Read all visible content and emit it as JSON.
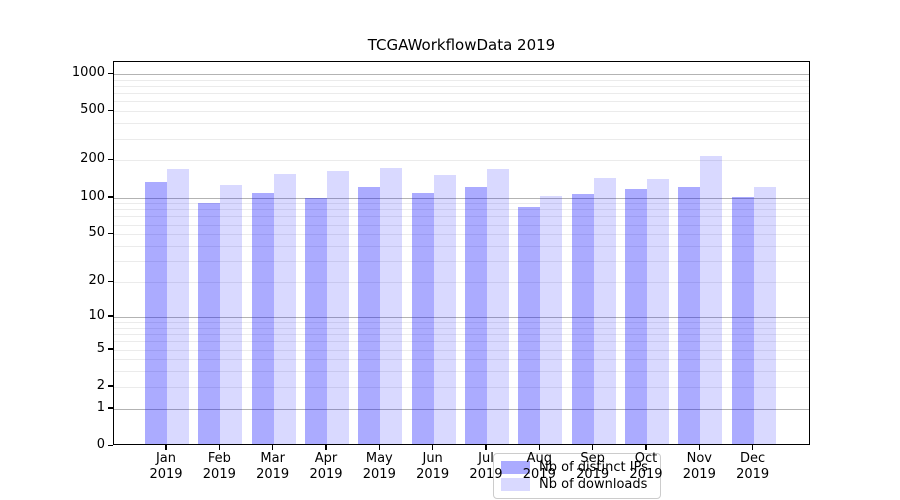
{
  "title": "TCGAWorkflowData 2019",
  "legend": {
    "items": [
      {
        "label": "Nb of distinct IPs",
        "swatch": "distinct-ips-swatch"
      },
      {
        "label": "Nb of downloads",
        "swatch": "downloads-swatch"
      }
    ]
  },
  "chart_data": {
    "type": "bar",
    "title": "TCGAWorkflowData 2019",
    "x": {
      "months": [
        "Jan",
        "Feb",
        "Mar",
        "Apr",
        "May",
        "Jun",
        "Jul",
        "Aug",
        "Sep",
        "Oct",
        "Nov",
        "Dec"
      ],
      "year": "2019"
    },
    "series": [
      {
        "name": "Nb of distinct IPs",
        "color": "rgba(0,0,255,0.33)",
        "values": [
          130,
          87,
          104,
          95,
          118,
          104,
          118,
          80,
          102,
          114,
          118,
          98
        ]
      },
      {
        "name": "Nb of downloads",
        "color": "rgba(0,0,255,0.15)",
        "values": [
          165,
          122,
          150,
          158,
          167,
          148,
          164,
          100,
          140,
          137,
          210,
          118
        ]
      }
    ],
    "yscale": "log1p",
    "ylim": [
      0,
      1250
    ],
    "yticks": [
      0,
      1,
      2,
      5,
      10,
      20,
      50,
      100,
      200,
      500,
      1000
    ],
    "grid": {
      "orientation": "horizontal",
      "major_color": "#b3b3b3",
      "minor_color": "#ebebeb"
    },
    "legend_position": "lower center"
  }
}
